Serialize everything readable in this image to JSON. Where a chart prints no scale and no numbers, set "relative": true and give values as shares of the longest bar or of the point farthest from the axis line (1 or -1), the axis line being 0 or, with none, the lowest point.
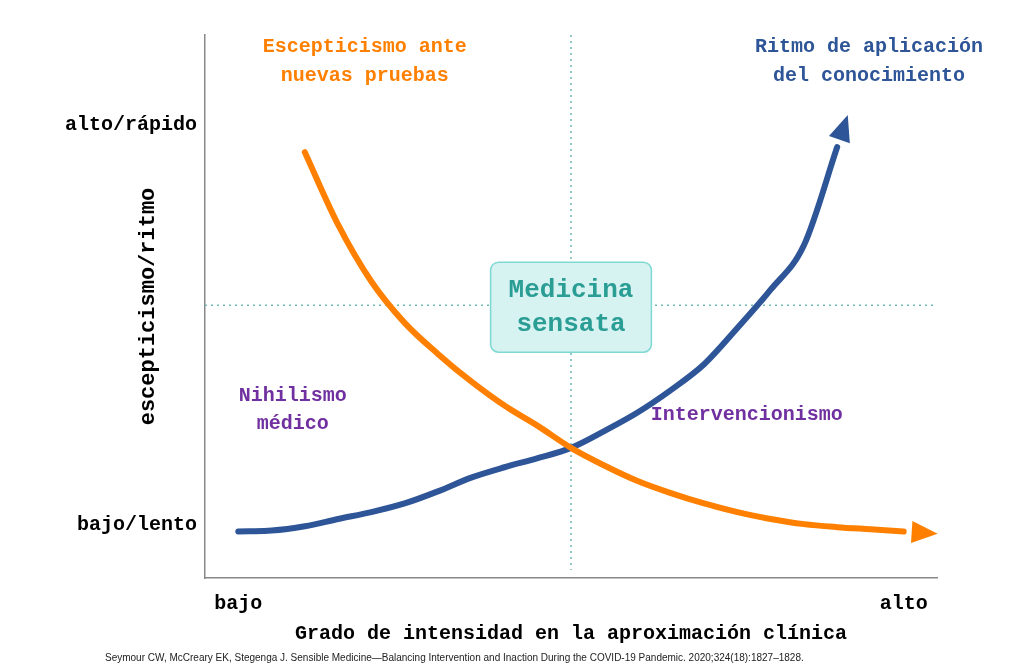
{
  "chart_data": {
    "type": "line",
    "relative": true,
    "xlabel": "Grado de intensidad en la aproximación clínica",
    "ylabel": "escepticismo/ritmo",
    "categories": [
      null,
      "bajo",
      null,
      null,
      null,
      null,
      null,
      null,
      null,
      null,
      null,
      null,
      null,
      null,
      null,
      null,
      null,
      null,
      null,
      null,
      null,
      "alto",
      null
    ],
    "series": [
      {
        "name": "Escepticismo ante nuevas pruebas",
        "color": "#ff8000",
        "values": [
          null,
          null,
          null,
          0.988,
          0.82,
          0.688,
          0.592,
          0.52,
          0.456,
          0.4,
          0.353,
          0.302,
          0.261,
          0.225,
          0.197,
          0.173,
          0.153,
          0.137,
          0.125,
          0.118,
          0.113,
          0.108,
          null
        ]
      },
      {
        "name": "Ritmo de aplicación del conocimiento",
        "color": "#2e5597",
        "values": [
          null,
          0.108,
          0.11,
          0.12,
          0.137,
          0.153,
          0.173,
          0.201,
          0.233,
          0.257,
          0.278,
          0.302,
          0.341,
          0.384,
          0.436,
          0.496,
          0.58,
          0.669,
          0.772,
          1,
          null,
          null,
          null
        ]
      }
    ],
    "ref_lines": [
      {
        "axis": "y",
        "value": 0.633,
        "label": null,
        "color": "#6fb8b8",
        "line_style": "dotted"
      }
    ],
    "annotations": [
      "Medicina sensata",
      "Nihilismo médico",
      "Intervencionismo",
      "alto/rápido",
      "bajo/lento",
      "Seymour CW, McCreary EK, Stegenga J. Sensible Medicine—Balancing Intervention and Inaction During the COVID-19 Pandemic. 2020;324(18):1827–1828."
    ],
    "grid": false,
    "legend": false,
    "marker": "none",
    "line_style": "solid"
  }
}
